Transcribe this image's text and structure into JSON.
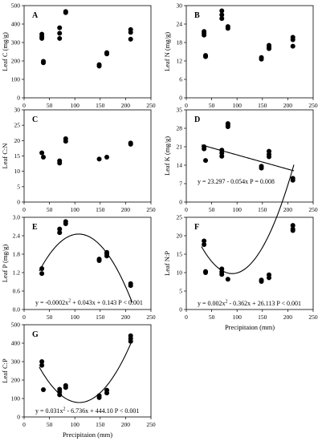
{
  "chart_data": [
    {
      "type": "scatter",
      "panel": "A",
      "xlim": [
        0,
        250
      ],
      "ylim": [
        0,
        500
      ],
      "xticks": [
        "0",
        "50",
        "100",
        "150",
        "200",
        "250"
      ],
      "yticks": [
        "0",
        "100",
        "200",
        "300",
        "400",
        "500"
      ],
      "xlabel": "",
      "ylabel": "Leaf C (mg/g)",
      "points": [
        [
          35,
          345
        ],
        [
          35,
          332
        ],
        [
          35,
          322
        ],
        [
          38,
          198
        ],
        [
          38,
          190
        ],
        [
          70,
          380
        ],
        [
          70,
          350
        ],
        [
          70,
          322
        ],
        [
          82,
          468
        ],
        [
          82,
          462
        ],
        [
          148,
          180
        ],
        [
          148,
          172
        ],
        [
          163,
          245
        ],
        [
          163,
          238
        ],
        [
          210,
          370
        ],
        [
          210,
          355
        ],
        [
          210,
          318
        ]
      ],
      "fit": null,
      "equation": ""
    },
    {
      "type": "scatter",
      "panel": "B",
      "xlim": [
        0,
        250
      ],
      "ylim": [
        0,
        30
      ],
      "xticks": [
        "0",
        "50",
        "100",
        "150",
        "200",
        "250"
      ],
      "yticks": [
        "0",
        "6",
        "12",
        "18",
        "24",
        "30"
      ],
      "xlabel": "",
      "ylabel": "Leaf N (mg/g)",
      "points": [
        [
          35,
          21.6
        ],
        [
          35,
          21.0
        ],
        [
          35,
          20.4
        ],
        [
          38,
          13.8
        ],
        [
          38,
          13.4
        ],
        [
          70,
          28.3
        ],
        [
          70,
          27.0
        ],
        [
          70,
          25.8
        ],
        [
          82,
          23.2
        ],
        [
          82,
          22.6
        ],
        [
          148,
          13.1
        ],
        [
          148,
          12.6
        ],
        [
          163,
          17.1
        ],
        [
          163,
          16.6
        ],
        [
          163,
          16.0
        ],
        [
          210,
          19.7
        ],
        [
          210,
          18.9
        ],
        [
          210,
          16.8
        ]
      ],
      "fit": null,
      "equation": ""
    },
    {
      "type": "scatter",
      "panel": "C",
      "xlim": [
        0,
        250
      ],
      "ylim": [
        0,
        30
      ],
      "xticks": [
        "0",
        "50",
        "100",
        "150",
        "200",
        "250"
      ],
      "yticks": [
        "0",
        "5",
        "10",
        "15",
        "20",
        "25",
        "30"
      ],
      "xlabel": "",
      "ylabel": "Leaf C:N",
      "points": [
        [
          35,
          16.0
        ],
        [
          38,
          14.6
        ],
        [
          70,
          13.4
        ],
        [
          70,
          12.7
        ],
        [
          82,
          20.6
        ],
        [
          82,
          19.8
        ],
        [
          148,
          14.0
        ],
        [
          163,
          14.6
        ],
        [
          210,
          19.2
        ],
        [
          210,
          18.8
        ]
      ],
      "fit": null,
      "equation": ""
    },
    {
      "type": "scatter",
      "panel": "D",
      "xlim": [
        0,
        250
      ],
      "ylim": [
        0,
        35
      ],
      "xticks": [
        "0",
        "50",
        "100",
        "150",
        "200",
        "250"
      ],
      "yticks": [
        "0",
        "7",
        "14",
        "21",
        "28",
        "35"
      ],
      "xlabel": "",
      "ylabel": "Leaf K (mg/g)",
      "points": [
        [
          35,
          21.0
        ],
        [
          35,
          20.2
        ],
        [
          38,
          15.8
        ],
        [
          70,
          19.7
        ],
        [
          70,
          18.6
        ],
        [
          70,
          17.4
        ],
        [
          82,
          29.8
        ],
        [
          82,
          29.2
        ],
        [
          82,
          28.6
        ],
        [
          148,
          13.6
        ],
        [
          148,
          12.9
        ],
        [
          163,
          19.3
        ],
        [
          163,
          18.1
        ],
        [
          163,
          17.2
        ],
        [
          210,
          9.0
        ],
        [
          210,
          8.3
        ]
      ],
      "fit": {
        "kind": "linear",
        "coef": [
          23.297,
          -0.054
        ],
        "xrange": [
          30,
          212
        ]
      },
      "equation": "y = 23.297 - 0.054x   P = 0.008"
    },
    {
      "type": "scatter",
      "panel": "E",
      "xlim": [
        0,
        250
      ],
      "ylim": [
        0,
        3.0
      ],
      "xticks": [
        "0",
        "50",
        "100",
        "150",
        "200",
        "250"
      ],
      "yticks": [
        "0.0",
        "0.6",
        "1.2",
        "1.8",
        "2.4",
        "3.0"
      ],
      "xlabel": "",
      "ylabel": "Leaf P (mg/g)",
      "points": [
        [
          35,
          1.33
        ],
        [
          35,
          1.17
        ],
        [
          70,
          2.62
        ],
        [
          70,
          2.5
        ],
        [
          82,
          2.86
        ],
        [
          82,
          2.79
        ],
        [
          148,
          1.64
        ],
        [
          148,
          1.59
        ],
        [
          163,
          1.86
        ],
        [
          163,
          1.81
        ],
        [
          163,
          1.74
        ],
        [
          210,
          0.84
        ],
        [
          210,
          0.78
        ]
      ],
      "fit": {
        "kind": "quadratic",
        "coef": [
          0.143,
          0.043,
          -0.0002
        ],
        "xrange": [
          30,
          213
        ]
      },
      "equation_parts": [
        "y = -0.0002x",
        "2",
        " + 0.043x + 0.143  P < 0.001"
      ]
    },
    {
      "type": "scatter",
      "panel": "F",
      "xlim": [
        0,
        250
      ],
      "ylim": [
        0,
        25
      ],
      "xticks": [
        "0",
        "50",
        "100",
        "150",
        "200",
        "250"
      ],
      "yticks": [
        "0",
        "5",
        "10",
        "15",
        "20",
        "25"
      ],
      "xlabel": "Precipitaion (mm)",
      "ylabel": "Leaf N:P",
      "points": [
        [
          35,
          18.6
        ],
        [
          35,
          17.6
        ],
        [
          38,
          10.3
        ],
        [
          38,
          10.0
        ],
        [
          70,
          11.0
        ],
        [
          70,
          10.2
        ],
        [
          70,
          9.5
        ],
        [
          82,
          8.2
        ],
        [
          148,
          8.0
        ],
        [
          148,
          7.6
        ],
        [
          163,
          9.4
        ],
        [
          163,
          8.6
        ],
        [
          210,
          22.8
        ],
        [
          210,
          21.8
        ],
        [
          210,
          21.4
        ]
      ],
      "fit": {
        "kind": "quadratic",
        "coef": [
          26.113,
          -0.362,
          0.002
        ],
        "xrange": [
          30,
          212
        ]
      },
      "equation_parts": [
        "y = 0.002x",
        "2",
        " - 0.362x + 26.113 P < 0.001"
      ]
    },
    {
      "type": "scatter",
      "panel": "G",
      "xlim": [
        0,
        250
      ],
      "ylim": [
        0,
        500
      ],
      "xticks": [
        "0",
        "50",
        "100",
        "150",
        "200",
        "250"
      ],
      "yticks": [
        "0",
        "100",
        "200",
        "300",
        "400",
        "500"
      ],
      "xlabel": "Precipitaion (mm)",
      "ylabel": "Leaf C:P",
      "points": [
        [
          35,
          300
        ],
        [
          35,
          280
        ],
        [
          38,
          148
        ],
        [
          70,
          150
        ],
        [
          70,
          136
        ],
        [
          70,
          120
        ],
        [
          82,
          170
        ],
        [
          82,
          160
        ],
        [
          148,
          115
        ],
        [
          148,
          105
        ],
        [
          163,
          145
        ],
        [
          163,
          130
        ],
        [
          210,
          440
        ],
        [
          210,
          425
        ],
        [
          210,
          410
        ]
      ],
      "fit": {
        "kind": "quadratic",
        "coef": [
          444.1,
          -6.736,
          0.031
        ],
        "xrange": [
          30,
          210
        ]
      },
      "equation_parts": [
        "y = 0.031x",
        "2",
        " - 6.736x + 444.10 P < 0.001"
      ]
    }
  ]
}
